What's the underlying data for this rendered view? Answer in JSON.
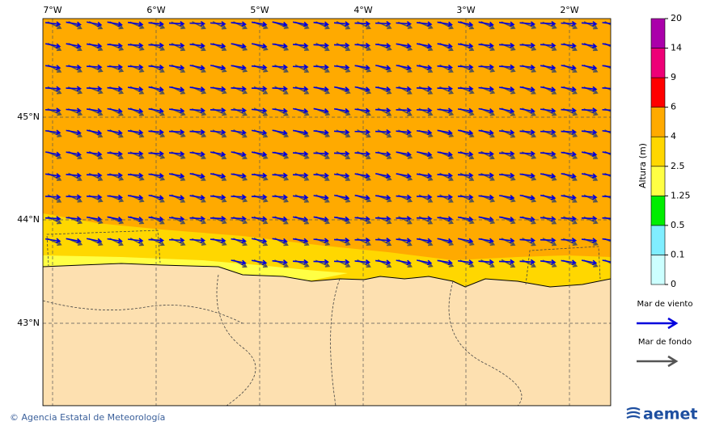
{
  "map": {
    "lon_labels": [
      "7°W",
      "6°W",
      "5°W",
      "4°W",
      "3°W",
      "2°W"
    ],
    "lat_labels": [
      "45°N",
      "44°N",
      "43°N"
    ],
    "colorbar": {
      "title": "Altura (m)",
      "levels": [
        0,
        0.1,
        0.5,
        1.25,
        2.5,
        4,
        6,
        9,
        14,
        20
      ],
      "colors": [
        "#ccffff",
        "#80eeff",
        "#00ee00",
        "#ffff44",
        "#ffd700",
        "#ffaa00",
        "#ff0000",
        "#ee0077",
        "#aa00aa"
      ]
    },
    "legend": [
      {
        "label": "Mar de viento",
        "color": "#0000dd"
      },
      {
        "label": "Mar de fondo",
        "color": "#555555"
      }
    ]
  },
  "footer": {
    "credit": "© Agencia Estatal de Meteorología",
    "logo": "aemet"
  }
}
